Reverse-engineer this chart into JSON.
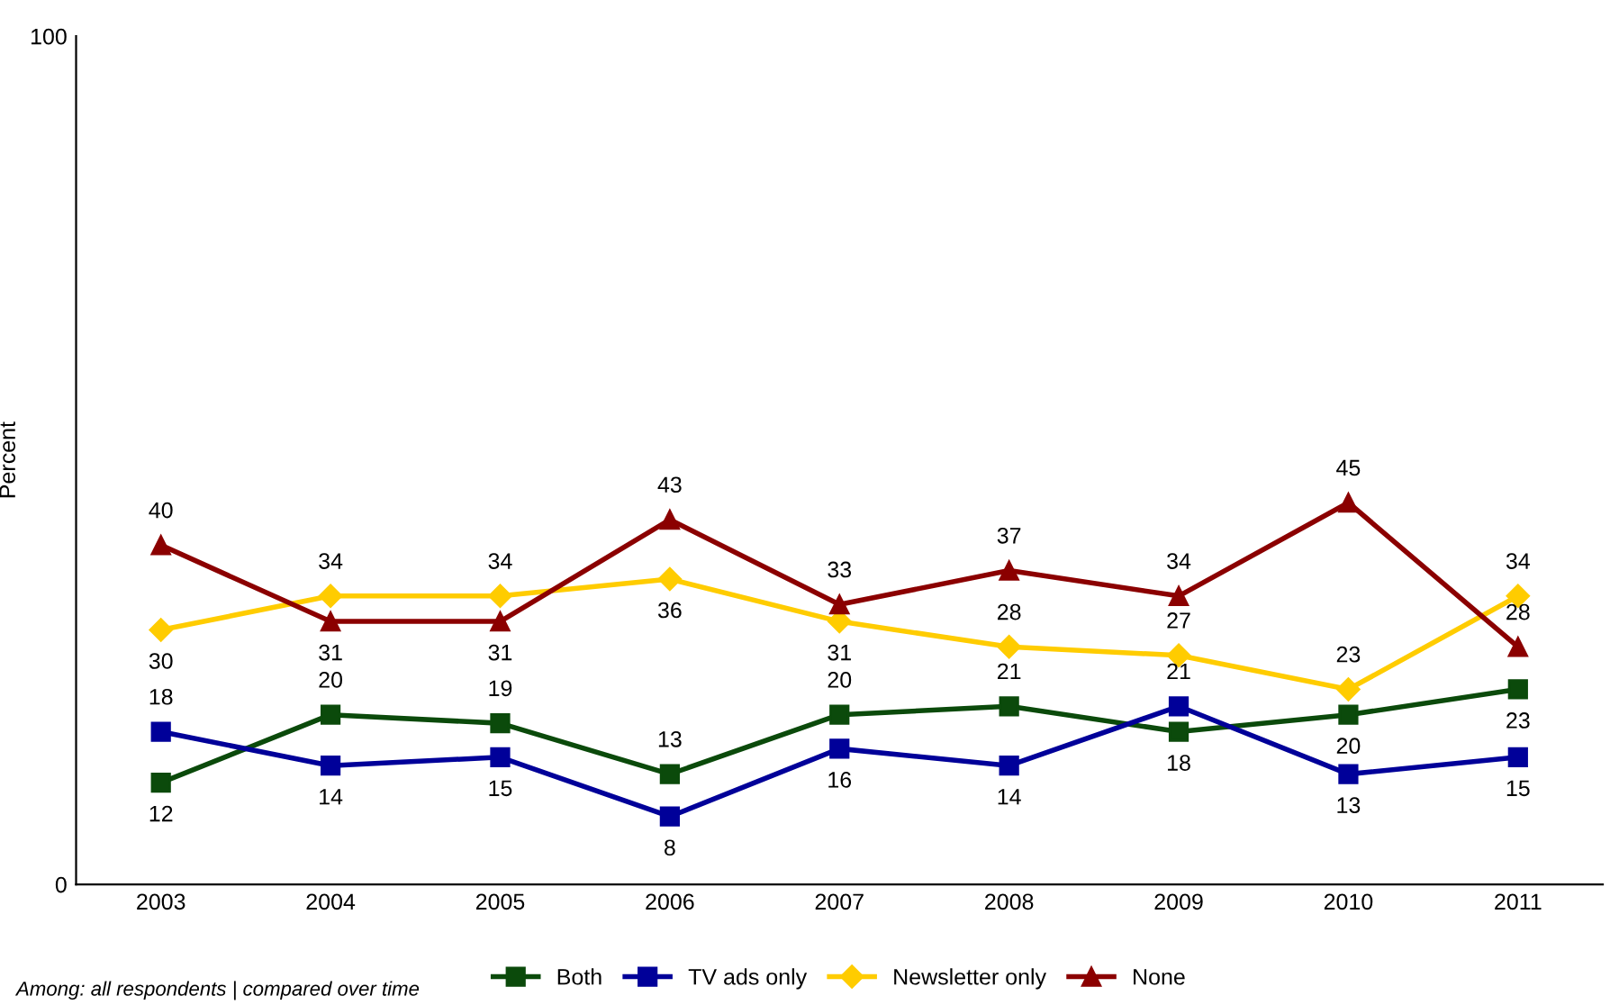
{
  "chart_data": {
    "type": "line",
    "ylabel": "Percent",
    "categories": [
      "2003",
      "2004",
      "2005",
      "2006",
      "2007",
      "2008",
      "2009",
      "2010",
      "2011"
    ],
    "series": [
      {
        "name": "Both",
        "color": "#0b4a0b",
        "marker": "square",
        "values": [
          12,
          20,
          19,
          13,
          20,
          21,
          18,
          20,
          23
        ]
      },
      {
        "name": "TV ads only",
        "color": "#000099",
        "marker": "square",
        "values": [
          18,
          14,
          15,
          8,
          16,
          14,
          21,
          13,
          15
        ]
      },
      {
        "name": "Newsletter only",
        "color": "#ffcc00",
        "marker": "diamond",
        "values": [
          30,
          34,
          34,
          36,
          31,
          28,
          27,
          23,
          34
        ]
      },
      {
        "name": "None",
        "color": "#8b0000",
        "marker": "triangle",
        "values": [
          40,
          31,
          31,
          43,
          33,
          37,
          34,
          45,
          28
        ]
      }
    ],
    "ylim": [
      0,
      100
    ],
    "yticks": [
      0,
      100
    ],
    "grid": false,
    "legend": "bottom",
    "data_labels": true,
    "line_style": "solid",
    "annotations": [
      "Among: all respondents | compared over time"
    ]
  }
}
